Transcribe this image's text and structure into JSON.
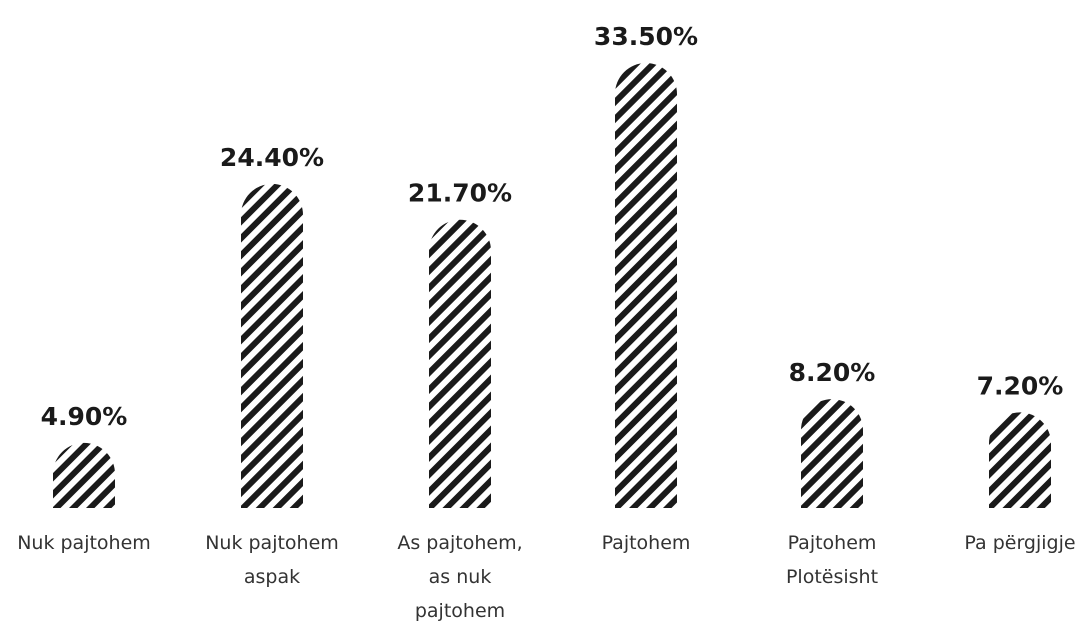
{
  "chart_data": {
    "type": "bar",
    "title": "",
    "xlabel": "",
    "ylabel": "",
    "ylim": [
      0,
      35
    ],
    "grid": false,
    "legend": "none",
    "categories": [
      [
        "Nuk pajtohem"
      ],
      [
        "Nuk pajtohem",
        "aspak"
      ],
      [
        "As pajtohem,",
        "as nuk",
        "pajtohem"
      ],
      [
        "Pajtohem"
      ],
      [
        "Pajtohem",
        "Plotësisht"
      ],
      [
        "Pa përgjigje"
      ]
    ],
    "values": [
      4.9,
      24.4,
      21.7,
      33.5,
      8.2,
      7.2
    ],
    "value_labels": [
      "4.90%",
      "24.40%",
      "21.70%",
      "33.50%",
      "8.20%",
      "7.20%"
    ],
    "colors": {
      "stripe": "#1a1a1a",
      "background": "#ffffff",
      "text": "#1a1a1a"
    }
  }
}
